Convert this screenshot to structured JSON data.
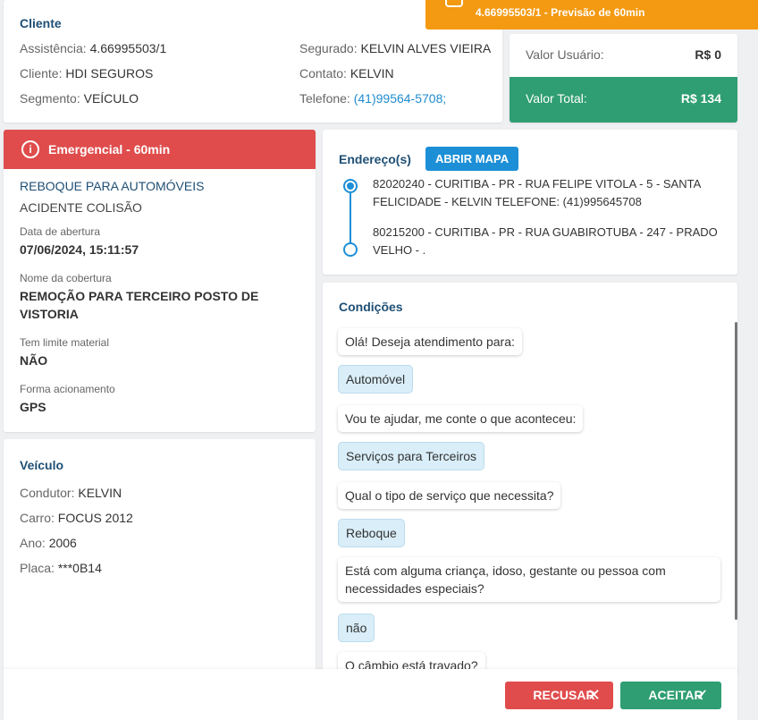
{
  "banner": {
    "text": "4.66995503/1 - Previsão de 60min",
    "icon": "car-icon"
  },
  "client": {
    "title": "Cliente",
    "assistencia_label": "Assistência:",
    "assistencia_value": "4.66995503/1",
    "cliente_label": "Cliente:",
    "cliente_value": "HDI SEGUROS",
    "segmento_label": "Segmento:",
    "segmento_value": "VEÍCULO",
    "segurado_label": "Segurado:",
    "segurado_value": "KELVIN ALVES VIEIRA",
    "contato_label": "Contato:",
    "contato_value": "KELVIN",
    "telefone_label": "Telefone:",
    "telefone_value": "(41)99564-5708;"
  },
  "values": {
    "usuario_label": "Valor Usuário:",
    "usuario_value": "R$ 0",
    "total_label": "Valor Total:",
    "total_value": "R$ 134"
  },
  "service": {
    "header": "Emergencial - 60min",
    "header_icon": "alert-circle-icon",
    "type": "REBOQUE PARA AUTOMÓVEIS",
    "subtype": "ACIDENTE COLISÃO",
    "abertura_label": "Data de abertura",
    "abertura_value": "07/06/2024, 15:11:57",
    "cobertura_label": "Nome da cobertura",
    "cobertura_value": "REMOÇÃO PARA TERCEIRO POSTO DE VISTORIA",
    "limite_label": "Tem limite material",
    "limite_value": "NÃO",
    "acionamento_label": "Forma acionamento",
    "acionamento_value": "GPS"
  },
  "vehicle": {
    "title": "Veículo",
    "condutor_label": "Condutor:",
    "condutor_value": "KELVIN",
    "carro_label": "Carro:",
    "carro_value": "FOCUS 2012",
    "ano_label": "Ano:",
    "ano_value": "2006",
    "placa_label": "Placa:",
    "placa_value": "***0B14"
  },
  "address": {
    "title": "Endereço(s)",
    "map_button": "ABRIR MAPA",
    "origin": "82020240 - CURITIBA - PR - RUA FELIPE VITOLA - 5 - SANTA FELICIDADE - KELVIN TELEFONE: (41)995645708",
    "destination": "80215200 - CURITIBA - PR - RUA GUABIROTUBA - 247 - PRADO VELHO - ."
  },
  "conditions": {
    "title": "Condições",
    "messages": [
      {
        "kind": "q",
        "text": "Olá! Deseja atendimento para:"
      },
      {
        "kind": "a",
        "text": "Automóvel"
      },
      {
        "kind": "q",
        "text": "Vou te ajudar, me conte o que aconteceu:"
      },
      {
        "kind": "a",
        "text": "Serviços para Terceiros"
      },
      {
        "kind": "q",
        "text": "Qual o tipo de serviço que necessita?"
      },
      {
        "kind": "a",
        "text": "Reboque"
      },
      {
        "kind": "q",
        "text": "Está com alguma criança, idoso, gestante ou pessoa com necessidades especiais?"
      },
      {
        "kind": "a",
        "text": "não"
      },
      {
        "kind": "q",
        "text": "O câmbio está travado?"
      }
    ]
  },
  "footer": {
    "refuse_label": "RECUSAR",
    "refuse_icon": "close-icon",
    "accept_label": "ACEITAR",
    "accept_icon": "check-icon"
  }
}
